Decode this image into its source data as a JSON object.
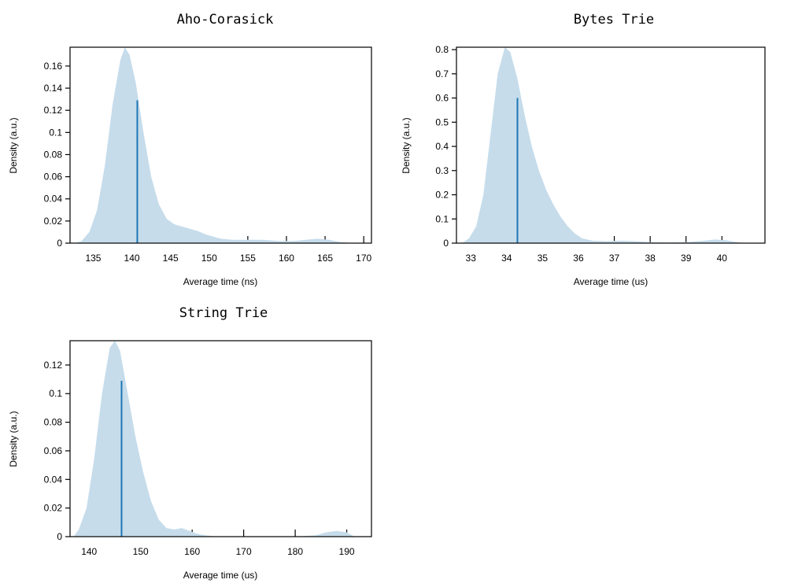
{
  "chart_data": [
    {
      "type": "area",
      "title": "Aho-Corasick",
      "xlabel": "Average time (ns)",
      "ylabel": "Density (a.u.)",
      "xlim": [
        132,
        171
      ],
      "ylim": [
        0,
        0.177
      ],
      "xticks": [
        135,
        140,
        145,
        150,
        155,
        160,
        165,
        170
      ],
      "xtick_labels": [
        "135",
        "140",
        "145",
        "150",
        "155",
        "160",
        "165",
        "170"
      ],
      "yticks": [
        0,
        0.02,
        0.04,
        0.06,
        0.08,
        0.1,
        0.12,
        0.14,
        0.16
      ],
      "ytick_labels": [
        "0",
        "0.02",
        "0.04",
        "0.06",
        "0.08",
        "0.1",
        "0.12",
        "0.14",
        "0.16"
      ],
      "density": {
        "x": [
          132.6,
          133.5,
          134.5,
          135.5,
          136.5,
          137.5,
          138.5,
          139.1,
          139.7,
          140.5,
          141.5,
          142.5,
          143.5,
          144.5,
          145.5,
          146.5,
          147.5,
          148.5,
          149.5,
          150.5,
          151.5,
          153,
          155,
          157,
          159,
          161,
          162.5,
          164,
          165.5,
          167,
          168.5
        ],
        "y": [
          0,
          0.002,
          0.01,
          0.03,
          0.07,
          0.125,
          0.165,
          0.177,
          0.17,
          0.145,
          0.1,
          0.06,
          0.035,
          0.022,
          0.017,
          0.015,
          0.013,
          0.011,
          0.008,
          0.006,
          0.004,
          0.003,
          0.003,
          0.003,
          0.002,
          0.002,
          0.003,
          0.004,
          0.003,
          0.001,
          0
        ]
      },
      "mean_marker": {
        "x": 140.7,
        "y": 0.129
      }
    },
    {
      "type": "area",
      "title": "Bytes Trie",
      "xlabel": "Average time (us)",
      "ylabel": "Density (a.u.)",
      "xlim": [
        32.6,
        41.2
      ],
      "ylim": [
        0,
        0.81
      ],
      "xticks": [
        33,
        34,
        35,
        36,
        37,
        38,
        39,
        40
      ],
      "xtick_labels": [
        "33",
        "34",
        "35",
        "36",
        "37",
        "38",
        "39",
        "40"
      ],
      "yticks": [
        0,
        0.1,
        0.2,
        0.3,
        0.4,
        0.5,
        0.6,
        0.7,
        0.8
      ],
      "ytick_labels": [
        "0",
        "0.1",
        "0.2",
        "0.3",
        "0.4",
        "0.5",
        "0.6",
        "0.7",
        "0.8"
      ],
      "density": {
        "x": [
          32.75,
          32.95,
          33.15,
          33.35,
          33.55,
          33.75,
          33.95,
          34.1,
          34.3,
          34.5,
          34.7,
          34.9,
          35.1,
          35.3,
          35.5,
          35.7,
          35.9,
          36.1,
          36.4,
          36.8,
          37.2,
          37.6,
          38,
          38.5,
          39,
          39.5,
          39.8,
          40.1,
          40.4,
          40.6
        ],
        "y": [
          0,
          0.02,
          0.07,
          0.2,
          0.45,
          0.7,
          0.81,
          0.79,
          0.68,
          0.53,
          0.4,
          0.3,
          0.22,
          0.16,
          0.11,
          0.07,
          0.04,
          0.02,
          0.01,
          0.008,
          0.01,
          0.008,
          0.004,
          0.003,
          0.004,
          0.01,
          0.015,
          0.012,
          0.005,
          0
        ]
      },
      "mean_marker": {
        "x": 34.3,
        "y": 0.6
      }
    },
    {
      "type": "area",
      "title": "String Trie",
      "xlabel": "Average time (us)",
      "ylabel": "Density (a.u.)",
      "xlim": [
        136.3,
        194.8
      ],
      "ylim": [
        0,
        0.137
      ],
      "xticks": [
        140,
        150,
        160,
        170,
        180,
        190
      ],
      "xtick_labels": [
        "140",
        "150",
        "160",
        "170",
        "180",
        "190"
      ],
      "yticks": [
        0,
        0.02,
        0.04,
        0.06,
        0.08,
        0.1,
        0.12
      ],
      "ytick_labels": [
        "0",
        "0.02",
        "0.04",
        "0.06",
        "0.08",
        "0.1",
        "0.12"
      ],
      "density": {
        "x": [
          137,
          138,
          139.5,
          141,
          142.5,
          144,
          145,
          146,
          147.5,
          149,
          150.5,
          152,
          153.5,
          155,
          156.5,
          158,
          159.5,
          161,
          162.5,
          165,
          170,
          175,
          180,
          184,
          186,
          188,
          190,
          191.5
        ],
        "y": [
          0,
          0.005,
          0.02,
          0.055,
          0.1,
          0.132,
          0.137,
          0.13,
          0.1,
          0.07,
          0.045,
          0.025,
          0.012,
          0.006,
          0.005,
          0.006,
          0.004,
          0.002,
          0.001,
          0,
          0,
          0,
          0,
          0.001,
          0.003,
          0.004,
          0.003,
          0
        ]
      },
      "mean_marker": {
        "x": 146.3,
        "y": 0.109
      }
    }
  ]
}
